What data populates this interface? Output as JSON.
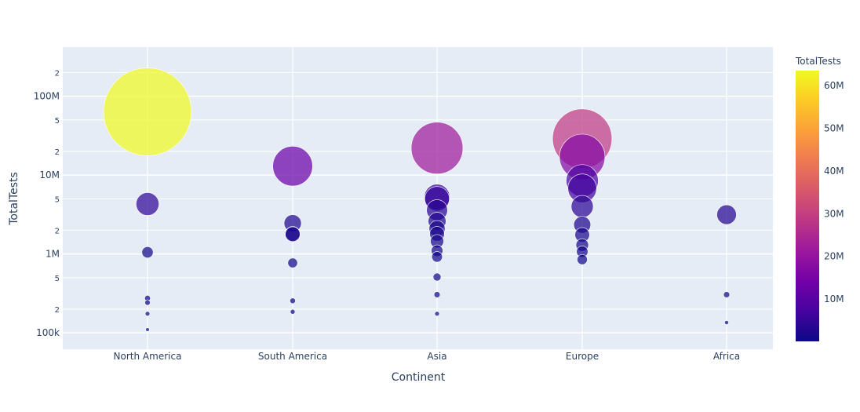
{
  "chart_data": {
    "type": "scatter",
    "subtype": "bubble",
    "xlabel": "Continent",
    "ylabel": "TotalTests",
    "yscale": "log",
    "ylim": [
      62000,
      420000000
    ],
    "categories": [
      "North America",
      "South America",
      "Asia",
      "Europe",
      "Africa"
    ],
    "y_major_ticks": [
      {
        "value": 100000,
        "label": "100k"
      },
      {
        "value": 1000000,
        "label": "1M"
      },
      {
        "value": 10000000,
        "label": "10M"
      },
      {
        "value": 100000000,
        "label": "100M"
      }
    ],
    "y_minor_ticks": [
      {
        "value": 200000,
        "label": "2"
      },
      {
        "value": 500000,
        "label": "5"
      },
      {
        "value": 2000000,
        "label": "2"
      },
      {
        "value": 5000000,
        "label": "5"
      },
      {
        "value": 20000000,
        "label": "2"
      },
      {
        "value": 50000000,
        "label": "5"
      },
      {
        "value": 200000000,
        "label": "2"
      }
    ],
    "colorbar": {
      "title": "TotalTests",
      "min": 100000,
      "max": 63500000,
      "ticks": [
        {
          "value": 10000000,
          "label": "10M"
        },
        {
          "value": 20000000,
          "label": "20M"
        },
        {
          "value": 30000000,
          "label": "30M"
        },
        {
          "value": 40000000,
          "label": "40M"
        },
        {
          "value": 50000000,
          "label": "50M"
        },
        {
          "value": 60000000,
          "label": "60M"
        }
      ],
      "stops": [
        "#0d0887",
        "#46039f",
        "#7201a8",
        "#9c179e",
        "#bd3786",
        "#d8576b",
        "#ed7953",
        "#fb9f3a",
        "#fdca26",
        "#f0f921"
      ]
    },
    "points": [
      {
        "continent": "North America",
        "value": 63500000
      },
      {
        "continent": "North America",
        "value": 4300000
      },
      {
        "continent": "North America",
        "value": 1050000
      },
      {
        "continent": "North America",
        "value": 275000
      },
      {
        "continent": "North America",
        "value": 242000
      },
      {
        "continent": "North America",
        "value": 175000
      },
      {
        "continent": "North America",
        "value": 110000
      },
      {
        "continent": "South America",
        "value": 13000000
      },
      {
        "continent": "South America",
        "value": 2450000
      },
      {
        "continent": "South America",
        "value": 1800000
      },
      {
        "continent": "South America",
        "value": 1780000
      },
      {
        "continent": "South America",
        "value": 770000
      },
      {
        "continent": "South America",
        "value": 255000
      },
      {
        "continent": "South America",
        "value": 185000
      },
      {
        "continent": "Asia",
        "value": 22000000
      },
      {
        "continent": "Asia",
        "value": 5300000
      },
      {
        "continent": "Asia",
        "value": 5000000
      },
      {
        "continent": "Asia",
        "value": 3600000
      },
      {
        "continent": "Asia",
        "value": 2600000
      },
      {
        "continent": "Asia",
        "value": 2100000
      },
      {
        "continent": "Asia",
        "value": 1800000
      },
      {
        "continent": "Asia",
        "value": 1450000
      },
      {
        "continent": "Asia",
        "value": 1100000
      },
      {
        "continent": "Asia",
        "value": 920000
      },
      {
        "continent": "Asia",
        "value": 510000
      },
      {
        "continent": "Asia",
        "value": 305000
      },
      {
        "continent": "Asia",
        "value": 175000
      },
      {
        "continent": "Europe",
        "value": 29000000
      },
      {
        "continent": "Europe",
        "value": 17000000
      },
      {
        "continent": "Europe",
        "value": 8500000
      },
      {
        "continent": "Europe",
        "value": 6800000
      },
      {
        "continent": "Europe",
        "value": 4000000
      },
      {
        "continent": "Europe",
        "value": 2350000
      },
      {
        "continent": "Europe",
        "value": 1750000
      },
      {
        "continent": "Europe",
        "value": 1300000
      },
      {
        "continent": "Europe",
        "value": 1070000
      },
      {
        "continent": "Europe",
        "value": 850000
      },
      {
        "continent": "Africa",
        "value": 3150000
      },
      {
        "continent": "Africa",
        "value": 305000
      },
      {
        "continent": "Africa",
        "value": 135000
      }
    ]
  }
}
